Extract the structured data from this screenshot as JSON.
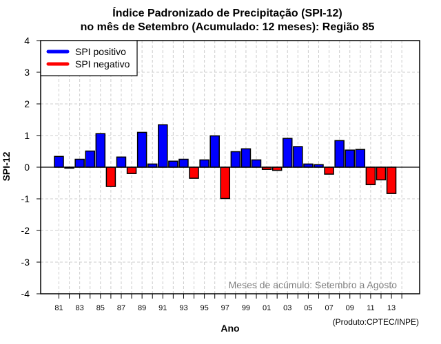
{
  "chart_data": {
    "type": "bar",
    "title": "Índice Padronizado de Precipitação (SPI-12)",
    "subtitle": "no mês de Setembro (Acumulado: 12 meses): Região 85",
    "xlabel": "Ano",
    "ylabel": "SPI-12",
    "ylim": [
      -4,
      4
    ],
    "yticks": [
      "-4",
      "-3",
      "-2",
      "-1",
      "0",
      "1",
      "2",
      "3",
      "4"
    ],
    "ytick_values": [
      -4,
      -3,
      -2,
      -1,
      0,
      1,
      2,
      3,
      4
    ],
    "grid": true,
    "categories": [
      "1981",
      "1982",
      "1983",
      "1984",
      "1985",
      "1986",
      "1987",
      "1988",
      "1989",
      "1990",
      "1991",
      "1992",
      "1993",
      "1994",
      "1995",
      "1996",
      "1997",
      "1998",
      "1999",
      "2000",
      "2001",
      "2002",
      "2003",
      "2004",
      "2005",
      "2006",
      "2007",
      "2008",
      "2009",
      "2010",
      "2011",
      "2012",
      "2013"
    ],
    "values": [
      0.34,
      -0.03,
      0.25,
      0.51,
      1.06,
      -0.61,
      0.32,
      -0.2,
      1.1,
      0.1,
      1.34,
      0.19,
      0.25,
      -0.35,
      0.23,
      0.99,
      -0.99,
      0.49,
      0.58,
      0.23,
      -0.07,
      -0.1,
      0.91,
      0.65,
      0.1,
      0.08,
      -0.22,
      0.84,
      0.54,
      0.56,
      -0.55,
      -0.4,
      -0.83
    ],
    "xticks_all": [
      "81",
      "82",
      "83",
      "84",
      "85",
      "86",
      "87",
      "88",
      "89",
      "90",
      "91",
      "92",
      "93",
      "94",
      "95",
      "96",
      "97",
      "98",
      "99",
      "00",
      "01",
      "02",
      "03",
      "04",
      "05",
      "06",
      "07",
      "08",
      "09",
      "10",
      "11",
      "12",
      "13",
      "14"
    ],
    "xtick_labels": [
      "81",
      "83",
      "85",
      "87",
      "89",
      "91",
      "93",
      "95",
      "97",
      "99",
      "01",
      "03",
      "05",
      "07",
      "09",
      "11",
      "13"
    ],
    "legend": {
      "placement": "top-left",
      "entries": [
        {
          "label": "SPI positivo",
          "color": "#0000ff"
        },
        {
          "label": "SPI negativo",
          "color": "#ff0000"
        }
      ]
    },
    "colors": {
      "positive": "#0000ff",
      "negative": "#ff0000",
      "grid": "#cccccc",
      "annotation": "#808080"
    },
    "annotation": "Meses de acúmulo: Setembro a Agosto",
    "credit": "(Produto:CPTEC/INPE)"
  }
}
